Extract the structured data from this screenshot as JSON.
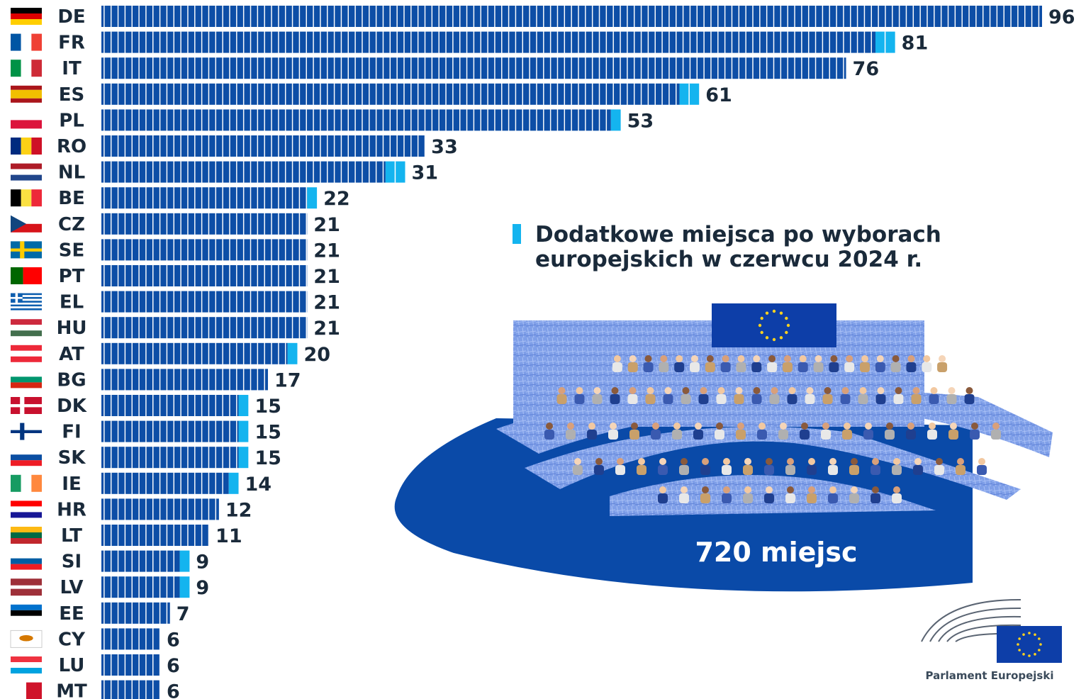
{
  "colors": {
    "base": "#0d4ea6",
    "extra": "#14b4ef",
    "dark_navy": "#1a2a3a",
    "hemicycle_dark": "#0a4aa8",
    "hemicycle_light": "#7f9fe8",
    "eu_blue": "#0d3ea8",
    "eu_star": "#ffd21e"
  },
  "legend": {
    "line1": "Dodatkowe miejsca po wyborach",
    "line2": "europejskich w czerwcu 2024 r."
  },
  "seats_label": "720 miejsc",
  "logo_text": "Parlament Europejski",
  "chart_data": {
    "type": "bar",
    "orientation": "horizontal",
    "categories": [
      "DE",
      "FR",
      "IT",
      "ES",
      "PL",
      "RO",
      "NL",
      "BE",
      "CZ",
      "SE",
      "PT",
      "EL",
      "HU",
      "AT",
      "BG",
      "DK",
      "FI",
      "SK",
      "IE",
      "HR",
      "LT",
      "SI",
      "LV",
      "EE",
      "CY",
      "LU",
      "MT"
    ],
    "values": [
      96,
      81,
      76,
      61,
      53,
      33,
      31,
      22,
      21,
      21,
      21,
      21,
      21,
      20,
      17,
      15,
      15,
      15,
      14,
      12,
      11,
      9,
      9,
      7,
      6,
      6,
      6
    ],
    "additional": [
      0,
      2,
      0,
      2,
      1,
      0,
      2,
      1,
      0,
      0,
      0,
      0,
      0,
      1,
      0,
      1,
      1,
      1,
      1,
      0,
      0,
      1,
      1,
      0,
      0,
      0,
      0
    ],
    "series": [
      {
        "name": "Dodatkowe miejsca po wyborach europejskich w czerwcu 2024 r.",
        "values": [
          0,
          2,
          0,
          2,
          1,
          0,
          2,
          1,
          0,
          0,
          0,
          0,
          0,
          1,
          0,
          1,
          1,
          1,
          1,
          0,
          0,
          1,
          1,
          0,
          0,
          0,
          0
        ]
      }
    ],
    "xlim": [
      0,
      96
    ],
    "grid": false,
    "legend_position": "right"
  },
  "flags": {
    "DE": {
      "type": "h",
      "colors": [
        "#000000",
        "#dd0000",
        "#ffce00"
      ]
    },
    "FR": {
      "type": "v",
      "colors": [
        "#0055a4",
        "#ffffff",
        "#ef4135"
      ]
    },
    "IT": {
      "type": "v",
      "colors": [
        "#009246",
        "#ffffff",
        "#ce2b37"
      ]
    },
    "ES": {
      "type": "hw",
      "colors": [
        "#aa151b",
        "#f1bf00",
        "#aa151b"
      ],
      "weights": [
        1,
        2,
        1
      ]
    },
    "PL": {
      "type": "h",
      "colors": [
        "#ffffff",
        "#dc143c"
      ]
    },
    "RO": {
      "type": "v",
      "colors": [
        "#002b7f",
        "#fcd116",
        "#ce1126"
      ]
    },
    "NL": {
      "type": "h",
      "colors": [
        "#ae1c28",
        "#ffffff",
        "#21468b"
      ]
    },
    "BE": {
      "type": "v",
      "colors": [
        "#000000",
        "#fae042",
        "#ed2939"
      ]
    },
    "CZ": {
      "type": "cz",
      "colors": [
        "#ffffff",
        "#d7141a",
        "#11457e"
      ]
    },
    "SE": {
      "type": "cross",
      "colors": [
        "#006aa7",
        "#fecc00"
      ]
    },
    "PT": {
      "type": "vw",
      "colors": [
        "#006600",
        "#ff0000"
      ],
      "weights": [
        2,
        3
      ]
    },
    "EL": {
      "type": "stripes",
      "colors": [
        "#0d5eaf",
        "#ffffff"
      ]
    },
    "HU": {
      "type": "h",
      "colors": [
        "#cd2a3e",
        "#ffffff",
        "#436f4d"
      ]
    },
    "AT": {
      "type": "h",
      "colors": [
        "#ed2939",
        "#ffffff",
        "#ed2939"
      ]
    },
    "BG": {
      "type": "h",
      "colors": [
        "#ffffff",
        "#00966e",
        "#d62612"
      ]
    },
    "DK": {
      "type": "cross",
      "colors": [
        "#c8102e",
        "#ffffff"
      ]
    },
    "FI": {
      "type": "cross",
      "colors": [
        "#ffffff",
        "#003580"
      ]
    },
    "SK": {
      "type": "h",
      "colors": [
        "#ffffff",
        "#0b4ea2",
        "#ee1c25"
      ]
    },
    "IE": {
      "type": "v",
      "colors": [
        "#169b62",
        "#ffffff",
        "#ff883e"
      ]
    },
    "HR": {
      "type": "h",
      "colors": [
        "#ff0000",
        "#ffffff",
        "#171796"
      ]
    },
    "LT": {
      "type": "h",
      "colors": [
        "#fdb913",
        "#006a44",
        "#c1272d"
      ]
    },
    "SI": {
      "type": "h",
      "colors": [
        "#ffffff",
        "#005da4",
        "#ed1c24"
      ]
    },
    "LV": {
      "type": "hw",
      "colors": [
        "#9e3039",
        "#ffffff",
        "#9e3039"
      ],
      "weights": [
        2,
        1,
        2
      ]
    },
    "EE": {
      "type": "h",
      "colors": [
        "#0072ce",
        "#000000",
        "#ffffff"
      ]
    },
    "CY": {
      "type": "cy",
      "colors": [
        "#ffffff",
        "#d57800"
      ]
    },
    "LU": {
      "type": "h",
      "colors": [
        "#ef3340",
        "#ffffff",
        "#00a3e0"
      ]
    },
    "MT": {
      "type": "vw",
      "colors": [
        "#ffffff",
        "#cf142b"
      ],
      "weights": [
        1,
        1
      ]
    }
  }
}
